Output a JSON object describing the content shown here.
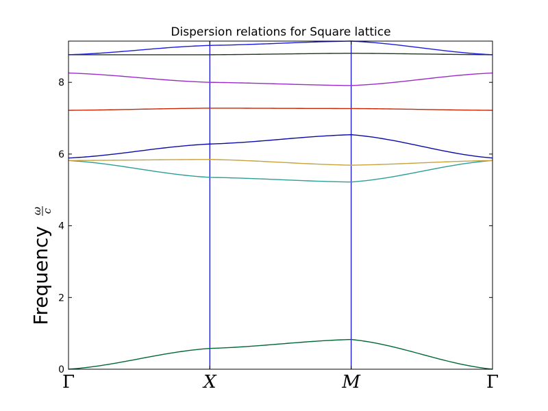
{
  "chart_data": {
    "type": "line",
    "title": "Dispersion relations for Square lattice",
    "ylabel": "Frequency",
    "ylabel_symbol_num": "ω",
    "ylabel_symbol_den": "c",
    "xlabel": "",
    "x_ticks": [
      "Γ",
      "X",
      "M",
      "Γ"
    ],
    "x": [
      0,
      1,
      2,
      3
    ],
    "xlim": [
      0,
      3
    ],
    "ylim": [
      0,
      9.15
    ],
    "y_ticks": [
      0,
      2,
      4,
      6,
      8
    ],
    "y_tick_labels": [
      "0",
      "2",
      "4",
      "6",
      "8"
    ],
    "grid": false,
    "symmetry_point_lines": {
      "color": "#0000cc",
      "x": [
        1,
        2
      ]
    },
    "series": [
      {
        "color": "#006633",
        "values": [
          0.0,
          0.58,
          0.83,
          0.0
        ]
      },
      {
        "color": "#2a9d98",
        "values": [
          5.82,
          5.35,
          5.22,
          5.82
        ]
      },
      {
        "color": "#c8a23a",
        "values": [
          5.82,
          5.85,
          5.69,
          5.82
        ]
      },
      {
        "color": "#0a0aa8",
        "values": [
          5.89,
          6.28,
          6.54,
          5.89
        ]
      },
      {
        "color": "#cc2200",
        "values": [
          7.22,
          7.28,
          7.27,
          7.22
        ]
      },
      {
        "color": "#9a2bc8",
        "values": [
          8.26,
          8.0,
          7.91,
          8.26
        ]
      },
      {
        "color": "#223322",
        "values": [
          8.77,
          8.77,
          8.81,
          8.77
        ]
      },
      {
        "color": "#1a1ae0",
        "values": [
          8.77,
          9.03,
          9.15,
          8.77
        ]
      }
    ]
  }
}
